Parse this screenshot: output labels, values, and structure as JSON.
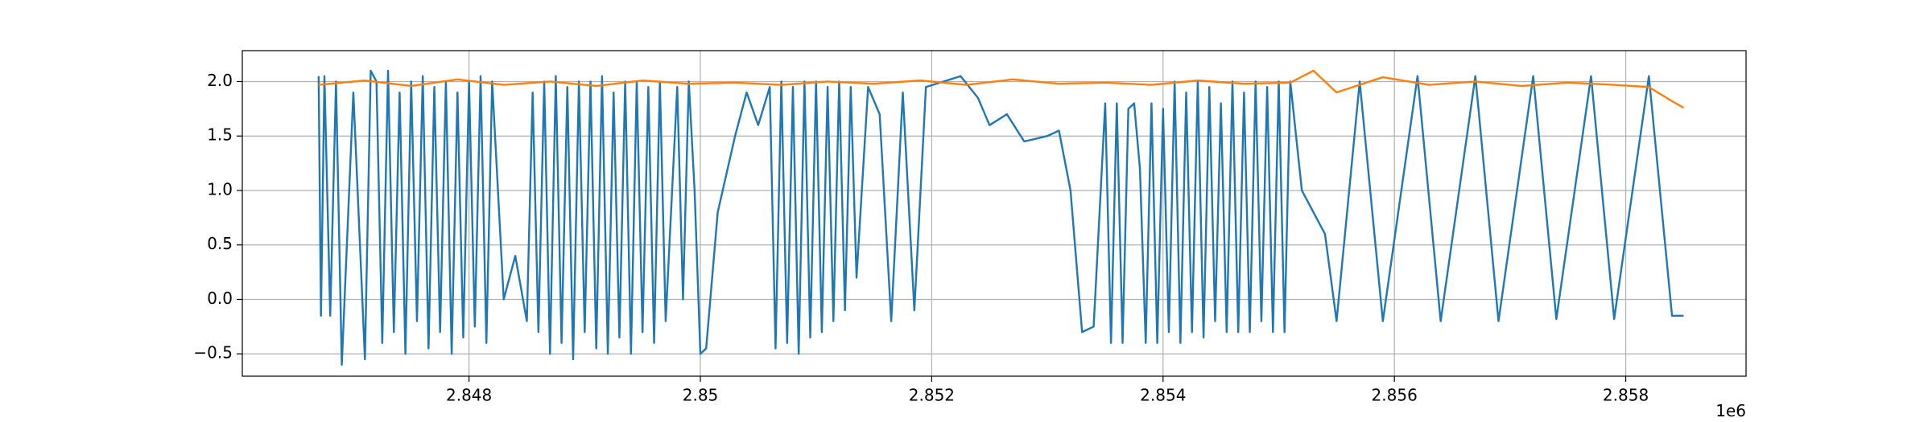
{
  "chart_data": {
    "type": "line",
    "xlim": [
      2.84604,
      2.85904
    ],
    "ylim": [
      -0.705,
      2.284
    ],
    "xticks": [
      2.848,
      2.85,
      2.852,
      2.854,
      2.856,
      2.858
    ],
    "x_offset_label": "1e6",
    "yticks": [
      {
        "value": -0.5,
        "label": "−0.5"
      },
      {
        "value": 0,
        "label": "0.0"
      },
      {
        "value": 0.5,
        "label": "0.5"
      },
      {
        "value": 1,
        "label": "1.0"
      },
      {
        "value": 1.5,
        "label": "1.5"
      },
      {
        "value": 2,
        "label": "2.0"
      }
    ],
    "grid": true,
    "series": [
      {
        "color": "#1f77b4",
        "x": [
          2.8467,
          2.84672,
          2.84675,
          2.8468,
          2.84685,
          2.8469,
          2.847,
          2.8471,
          2.84715,
          2.8472,
          2.84725,
          2.8473,
          2.84735,
          2.8474,
          2.84745,
          2.8475,
          2.84755,
          2.8476,
          2.84765,
          2.8477,
          2.84775,
          2.8478,
          2.84785,
          2.8479,
          2.84795,
          2.848,
          2.84805,
          2.8481,
          2.84815,
          2.8482,
          2.8483,
          2.8484,
          2.8485,
          2.84855,
          2.8486,
          2.84865,
          2.8487,
          2.84875,
          2.8488,
          2.84885,
          2.8489,
          2.84895,
          2.849,
          2.84905,
          2.8491,
          2.84915,
          2.8492,
          2.84925,
          2.8493,
          2.84935,
          2.8494,
          2.84945,
          2.8495,
          2.84955,
          2.8496,
          2.84965,
          2.8497,
          2.8498,
          2.84985,
          2.8499,
          2.84995,
          2.85,
          2.85005,
          2.85015,
          2.8503,
          2.8504,
          2.8505,
          2.8506,
          2.85065,
          2.8507,
          2.85075,
          2.8508,
          2.85085,
          2.8509,
          2.85095,
          2.851,
          2.85105,
          2.8511,
          2.85115,
          2.8512,
          2.85125,
          2.8513,
          2.85135,
          2.85145,
          2.85155,
          2.85165,
          2.85175,
          2.85185,
          2.85195,
          2.8521,
          2.85225,
          2.8524,
          2.8525,
          2.85265,
          2.8528,
          2.853,
          2.8531,
          2.8532,
          2.8533,
          2.8534,
          2.8535,
          2.85355,
          2.8536,
          2.85365,
          2.8537,
          2.85375,
          2.8538,
          2.85385,
          2.8539,
          2.85395,
          2.854,
          2.85405,
          2.8541,
          2.85415,
          2.8542,
          2.85425,
          2.8543,
          2.85435,
          2.8544,
          2.85445,
          2.8545,
          2.85455,
          2.8546,
          2.85465,
          2.8547,
          2.85475,
          2.8548,
          2.85485,
          2.8549,
          2.85495,
          2.855,
          2.85505,
          2.8551,
          2.8552,
          2.8554,
          2.8555,
          2.8557,
          2.8559,
          2.8562,
          2.8564,
          2.8567,
          2.8569,
          2.8572,
          2.8574,
          2.8577,
          2.8579,
          2.8582,
          2.8584,
          2.8585
        ],
        "values": [
          2.05,
          -0.15,
          2.05,
          -0.15,
          2.0,
          -0.6,
          1.9,
          -0.55,
          2.1,
          2.0,
          -0.4,
          2.1,
          -0.3,
          1.9,
          -0.5,
          2.0,
          -0.2,
          2.05,
          -0.45,
          1.95,
          -0.3,
          2.0,
          -0.5,
          1.9,
          -0.35,
          2.0,
          -0.25,
          2.05,
          -0.4,
          2.0,
          0.0,
          0.4,
          -0.2,
          1.9,
          -0.3,
          2.0,
          -0.5,
          2.05,
          -0.4,
          1.95,
          -0.55,
          2.0,
          -0.3,
          2.0,
          -0.45,
          2.05,
          -0.5,
          1.9,
          -0.35,
          2.0,
          -0.5,
          2.0,
          -0.3,
          1.95,
          -0.4,
          2.0,
          -0.2,
          1.95,
          0.0,
          2.0,
          1.0,
          -0.5,
          -0.45,
          0.8,
          1.5,
          1.9,
          1.6,
          1.95,
          -0.45,
          2.0,
          -0.4,
          1.95,
          -0.5,
          2.0,
          -0.35,
          2.0,
          -0.3,
          1.95,
          -0.2,
          2.0,
          -0.1,
          1.95,
          0.2,
          1.95,
          1.7,
          -0.2,
          1.9,
          -0.1,
          1.95,
          2.0,
          2.05,
          1.85,
          1.6,
          1.7,
          1.45,
          1.5,
          1.55,
          1.0,
          -0.3,
          -0.25,
          1.8,
          -0.4,
          1.8,
          -0.4,
          1.75,
          1.8,
          1.2,
          -0.4,
          1.8,
          -0.4,
          1.75,
          -0.3,
          2.0,
          -0.4,
          1.9,
          -0.3,
          2.0,
          -0.35,
          1.95,
          -0.2,
          1.8,
          -0.3,
          2.0,
          -0.3,
          1.9,
          -0.3,
          2.0,
          -0.2,
          1.95,
          -0.3,
          2.0,
          -0.3,
          2.0,
          1.0,
          0.6,
          -0.2,
          2.0,
          -0.2,
          2.05,
          -0.2,
          2.05,
          -0.2,
          2.05,
          -0.18,
          2.05,
          -0.18,
          2.05,
          -0.15,
          -0.15
        ]
      },
      {
        "color": "#ff7f0e",
        "x": [
          2.8467,
          2.8471,
          2.8475,
          2.8479,
          2.8483,
          2.8487,
          2.8491,
          2.8495,
          2.8499,
          2.8503,
          2.8507,
          2.8511,
          2.8515,
          2.8519,
          2.8523,
          2.8527,
          2.8531,
          2.8535,
          2.8539,
          2.8543,
          2.8547,
          2.8551,
          2.8553,
          2.8555,
          2.8559,
          2.8563,
          2.8567,
          2.8571,
          2.8575,
          2.8579,
          2.8582,
          2.8584,
          2.8585
        ],
        "values": [
          1.97,
          2.01,
          1.96,
          2.02,
          1.97,
          2.0,
          1.96,
          2.01,
          1.98,
          1.99,
          1.97,
          2.0,
          1.98,
          2.01,
          1.97,
          2.02,
          1.98,
          1.99,
          1.97,
          2.01,
          1.98,
          1.99,
          2.1,
          1.9,
          2.04,
          1.97,
          2.0,
          1.96,
          1.99,
          1.97,
          1.95,
          1.82,
          1.76
        ]
      }
    ]
  }
}
